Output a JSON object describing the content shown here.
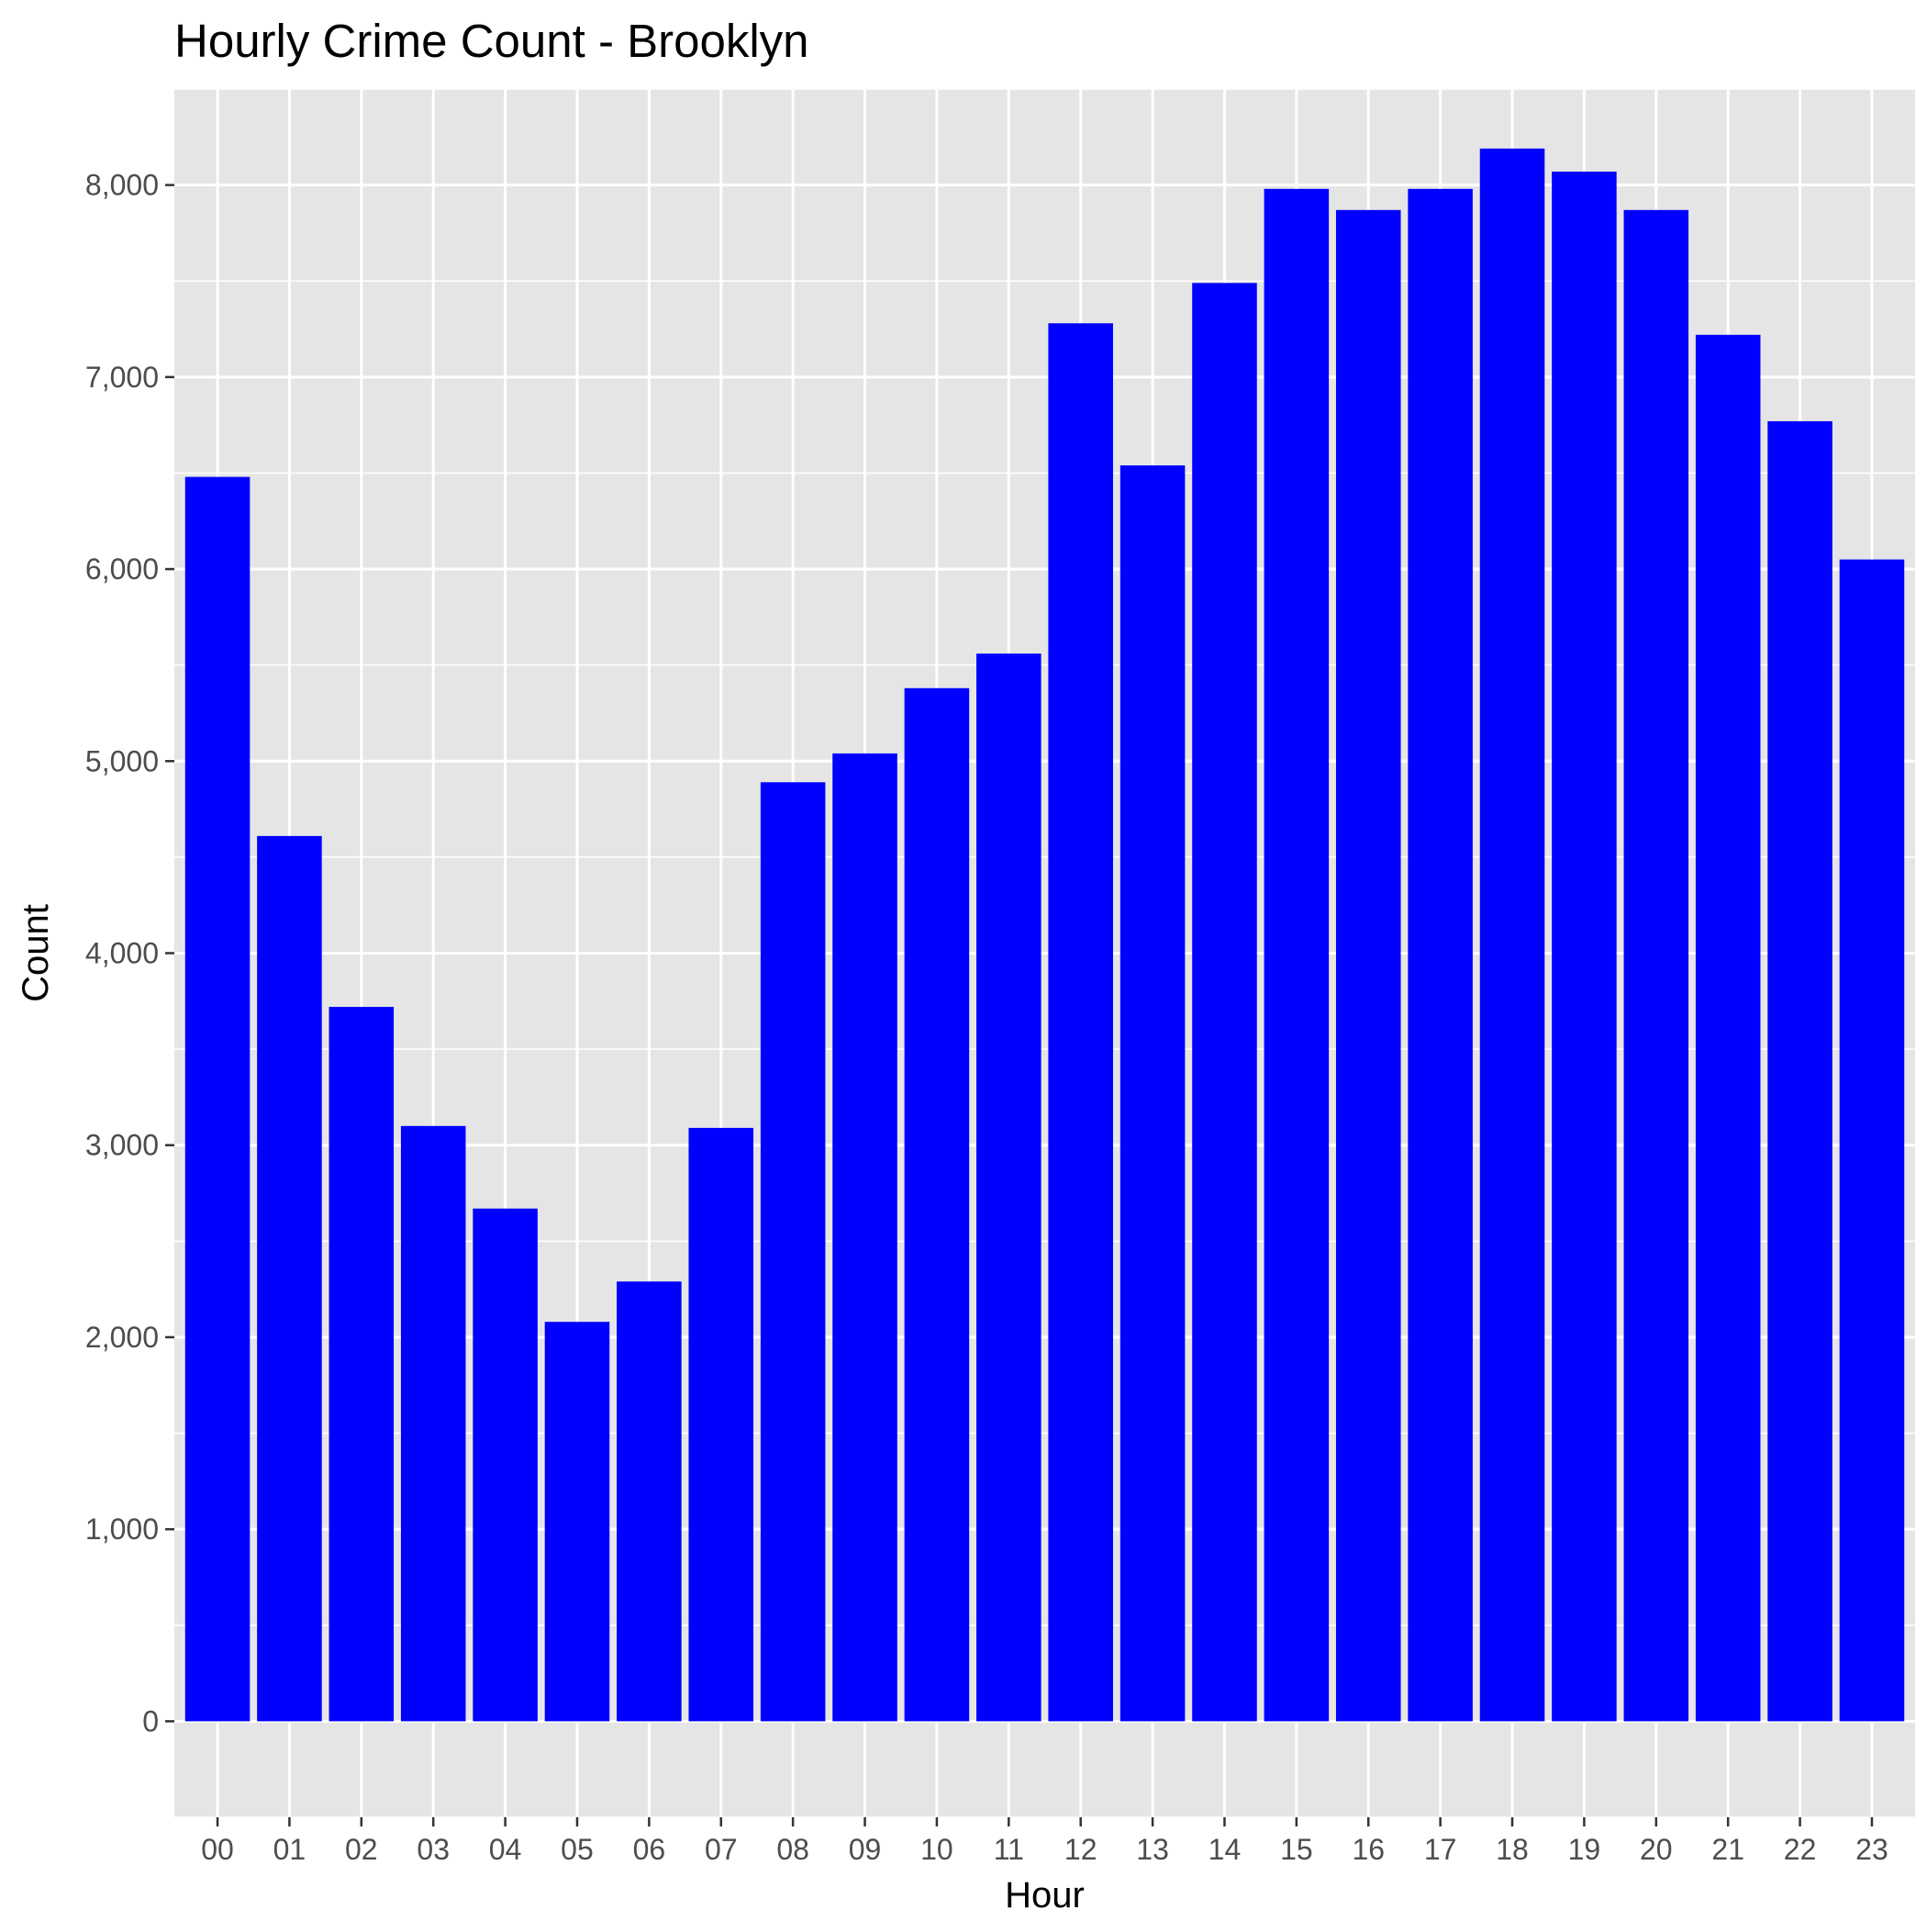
{
  "chart_data": {
    "type": "bar",
    "title": "Hourly Crime Count - Brooklyn",
    "xlabel": "Hour",
    "ylabel": "Count",
    "categories": [
      "00",
      "01",
      "02",
      "03",
      "04",
      "05",
      "06",
      "07",
      "08",
      "09",
      "10",
      "11",
      "12",
      "13",
      "14",
      "15",
      "16",
      "17",
      "18",
      "19",
      "20",
      "21",
      "22",
      "23"
    ],
    "values": [
      6480,
      4610,
      3720,
      3100,
      2670,
      2080,
      2290,
      3090,
      4890,
      5040,
      5380,
      5560,
      7280,
      6540,
      7490,
      7980,
      7870,
      7980,
      8190,
      8070,
      7870,
      7220,
      6770,
      6050
    ],
    "ylim": [
      -500,
      8500
    ],
    "yticks": [
      0,
      1000,
      2000,
      3000,
      4000,
      5000,
      6000,
      7000,
      8000
    ],
    "ytick_labels": [
      "0",
      "1,000",
      "2,000",
      "3,000",
      "4,000",
      "5,000",
      "6,000",
      "7,000",
      "8,000"
    ],
    "grid": true,
    "colors": {
      "bar": "#0000ff",
      "panel_background": "#e5e5e5",
      "grid": "#ffffff",
      "tick_text": "#4d4d4d"
    }
  }
}
